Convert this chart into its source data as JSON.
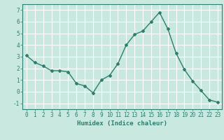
{
  "x": [
    0,
    1,
    2,
    3,
    4,
    5,
    6,
    7,
    8,
    9,
    10,
    11,
    12,
    13,
    14,
    15,
    16,
    17,
    18,
    19,
    20,
    21,
    22,
    23
  ],
  "y": [
    3.1,
    2.5,
    2.2,
    1.8,
    1.8,
    1.7,
    0.7,
    0.5,
    -0.1,
    1.0,
    1.4,
    2.4,
    4.0,
    4.9,
    5.2,
    6.0,
    6.8,
    5.4,
    3.3,
    1.9,
    0.9,
    0.1,
    -0.7,
    -0.9
  ],
  "line_color": "#2e7d6e",
  "marker": "D",
  "marker_size": 2.0,
  "bg_color": "#c8e8e0",
  "grid_color": "#ffffff",
  "xlabel": "Humidex (Indice chaleur)",
  "ylim": [
    -1.5,
    7.5
  ],
  "xlim": [
    -0.5,
    23.5
  ],
  "yticks": [
    -1,
    0,
    1,
    2,
    3,
    4,
    5,
    6,
    7
  ],
  "xticks": [
    0,
    1,
    2,
    3,
    4,
    5,
    6,
    7,
    8,
    9,
    10,
    11,
    12,
    13,
    14,
    15,
    16,
    17,
    18,
    19,
    20,
    21,
    22,
    23
  ],
  "tick_color": "#2e7d6e",
  "label_color": "#2e7d6e",
  "font_size_xlabel": 6.5,
  "font_size_tick": 5.5,
  "linewidth": 1.0
}
